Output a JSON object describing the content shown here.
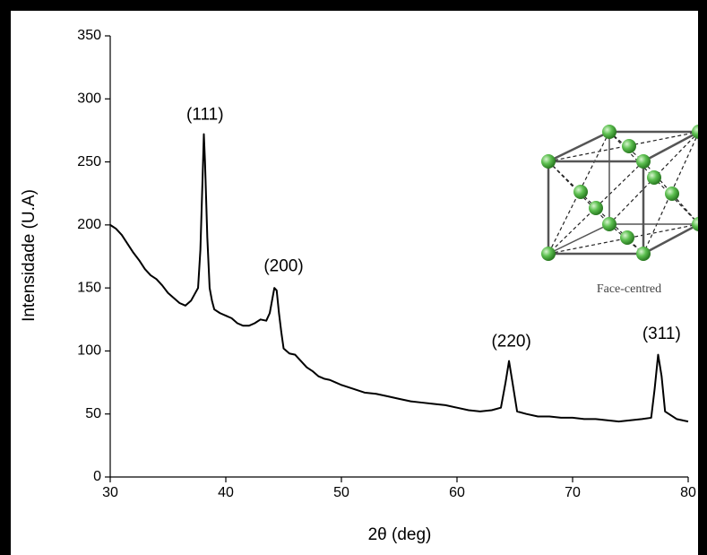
{
  "chart_data": {
    "type": "line",
    "xlabel": "2θ (deg)",
    "ylabel": "Intensidade (U.A)",
    "x": [
      30,
      30.5,
      31,
      31.5,
      32,
      32.5,
      33,
      33.5,
      34,
      34.5,
      35,
      35.5,
      36,
      36.5,
      37,
      37.3,
      37.6,
      37.8,
      38,
      38.1,
      38.2,
      38.4,
      38.6,
      38.8,
      39,
      39.5,
      40,
      40.5,
      41,
      41.5,
      42,
      42.5,
      43,
      43.5,
      43.8,
      44,
      44.2,
      44.4,
      44.6,
      44.8,
      45,
      45.5,
      46,
      46.5,
      47,
      47.5,
      48,
      48.5,
      49,
      49.5,
      50,
      51,
      52,
      53,
      54,
      55,
      56,
      57,
      58,
      59,
      60,
      61,
      62,
      63,
      63.8,
      64.2,
      64.5,
      64.8,
      65.2,
      66,
      67,
      68,
      69,
      70,
      71,
      72,
      73,
      74,
      75,
      76,
      76.8,
      77.1,
      77.4,
      77.7,
      78,
      79,
      79.5,
      80
    ],
    "values": [
      200,
      197,
      192,
      185,
      178,
      172,
      165,
      160,
      157,
      152,
      146,
      142,
      138,
      136,
      140,
      145,
      150,
      180,
      240,
      272,
      250,
      190,
      150,
      140,
      133,
      130,
      128,
      126,
      122,
      120,
      120,
      122,
      125,
      124,
      130,
      140,
      150,
      148,
      130,
      115,
      102,
      98,
      97,
      92,
      87,
      84,
      80,
      78,
      77,
      75,
      73,
      70,
      67,
      66,
      64,
      62,
      60,
      59,
      58,
      57,
      55,
      53,
      52,
      53,
      55,
      75,
      92,
      75,
      52,
      50,
      48,
      48,
      47,
      47,
      46,
      46,
      45,
      44,
      45,
      46,
      47,
      70,
      97,
      80,
      52,
      46,
      45,
      44
    ],
    "color": "#000000",
    "xlim": [
      30,
      80
    ],
    "xticks": [
      30,
      40,
      50,
      60,
      70,
      80
    ],
    "ylim": [
      0,
      350
    ],
    "yticks": [
      0,
      50,
      100,
      150,
      200,
      250,
      300,
      350
    ],
    "annotations": [
      {
        "text": "(111)",
        "x": 38.2,
        "y": 287
      },
      {
        "text": "(200)",
        "x": 45.0,
        "y": 167
      },
      {
        "text": "(220)",
        "x": 64.7,
        "y": 107
      },
      {
        "text": "(311)",
        "x": 77.7,
        "y": 113
      }
    ],
    "inset_label": "Face-centred"
  }
}
